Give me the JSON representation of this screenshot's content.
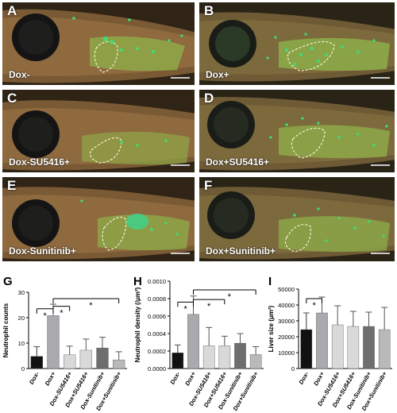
{
  "panels": [
    {
      "letter": "A",
      "condition": "Dox-"
    },
    {
      "letter": "B",
      "condition": "Dox+"
    },
    {
      "letter": "C",
      "condition": "Dox-SU5416+"
    },
    {
      "letter": "D",
      "condition": "Dox+SU5416+"
    },
    {
      "letter": "E",
      "condition": "Dox-Sunitinib+"
    },
    {
      "letter": "F",
      "condition": "Dox+Sunitinib+"
    }
  ],
  "colors": {
    "bar_black": "#111111",
    "bar_light": "#a9a9ae",
    "bar_pale": "#d9d9d9",
    "bar_dark": "#6e6e6e",
    "bar_mid": "#b9b9b9",
    "fish_bg": "#3b2e1c",
    "tissue_green": "#7fb341",
    "neutrophil": "#2bd46a"
  },
  "chart_data": [
    {
      "panel": "G",
      "type": "bar",
      "ylabel": "Neutrophil counts",
      "categories": [
        "Dox-",
        "Dox+",
        "Dox-SU5416+",
        "Dox+SU5416+",
        "Dox-Sunitinib+",
        "Dox+Sunitinib+"
      ],
      "values": [
        4.8,
        20.8,
        5.4,
        7.2,
        8.1,
        3.4
      ],
      "errors": [
        3.8,
        4.5,
        3.4,
        4.4,
        4.2,
        3.2
      ],
      "ylim": [
        0,
        30
      ],
      "yticks": [
        "0",
        "10",
        "20",
        "30"
      ],
      "significance": [
        "*",
        "*",
        "*"
      ]
    },
    {
      "panel": "H",
      "type": "bar",
      "ylabel": "Neutrophil density (/μm²)",
      "categories": [
        "Dox-",
        "Dox+",
        "Dox-SU5416+",
        "Dox+SU5416+",
        "Dox-Sunitinib+",
        "Dox+Sunitinib+"
      ],
      "values": [
        0.00018,
        0.00062,
        0.00026,
        0.00026,
        0.00029,
        0.00016
      ],
      "errors": [
        9e-05,
        0.00021,
        0.00021,
        0.00011,
        0.00011,
        9e-05
      ],
      "ylim": [
        0,
        0.001
      ],
      "yticks": [
        "0.0000",
        "0.0002",
        "0.0004",
        "0.0006",
        "0.0008",
        "0.0010"
      ],
      "significance": [
        "*",
        "*",
        "*"
      ]
    },
    {
      "panel": "I",
      "type": "bar",
      "ylabel": "Liver size (μm²)",
      "categories": [
        "Dox-",
        "Dox+",
        "Dox-SU5416+",
        "Dox+SU5416+",
        "Dox-Sunitinib+",
        "Dox+Sunitinib+"
      ],
      "values": [
        24500,
        35000,
        27500,
        26500,
        26500,
        24500
      ],
      "errors": [
        10500,
        10000,
        12000,
        9500,
        9000,
        14000
      ],
      "ylim": [
        0,
        50000
      ],
      "yticks": [
        "0",
        "10000",
        "20000",
        "30000",
        "40000",
        "50000"
      ],
      "significance": [
        "*"
      ]
    }
  ]
}
